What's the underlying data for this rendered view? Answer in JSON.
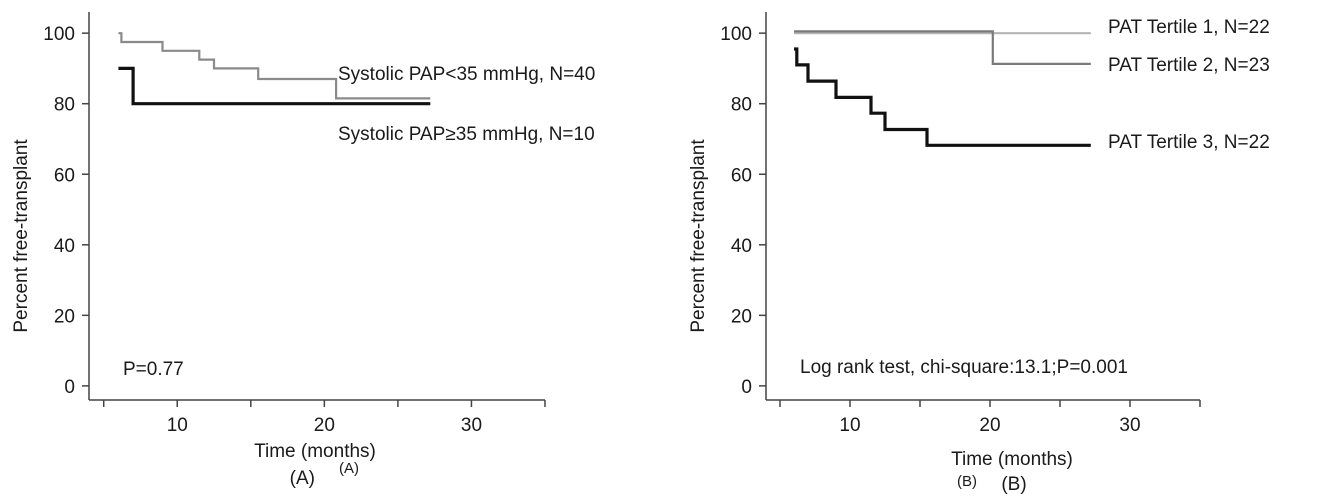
{
  "chart_data": [
    {
      "type": "line",
      "panel_label": "(A)",
      "panel_label_sup": "(A)",
      "xlabel": "Time (months)",
      "ylabel": "Percent  free-transplant",
      "xlim": [
        4,
        35
      ],
      "ylim": [
        -4,
        106
      ],
      "xticks": [
        10,
        20,
        30
      ],
      "yticks": [
        0,
        20,
        40,
        60,
        80,
        100
      ],
      "grid": false,
      "annotation": "P=0.77",
      "series": [
        {
          "name": "Systolic PAP<35 mmHg, N=40",
          "color": "#8a8a8a",
          "x": [
            6,
            6.2,
            6.2,
            9,
            9,
            11.5,
            11.5,
            12.5,
            12.5,
            15.5,
            15.5,
            20.8,
            20.8,
            27.2
          ],
          "y": [
            100,
            100,
            97.5,
            97.5,
            95,
            95,
            92.5,
            92.5,
            90,
            90,
            87,
            87,
            81.5,
            81.5
          ]
        },
        {
          "name": "Systolic PAP≥35 mmHg, N=10",
          "color": "#111111",
          "x": [
            6,
            7,
            7,
            27.2
          ],
          "y": [
            90,
            90,
            80,
            80
          ]
        }
      ]
    },
    {
      "type": "line",
      "panel_label": "(B)",
      "panel_label_sub": "(B)",
      "xlabel": "Time (months)",
      "ylabel": "Percent  free-transplant",
      "xlim": [
        4,
        35
      ],
      "ylim": [
        -4,
        106
      ],
      "xticks": [
        10,
        20,
        30
      ],
      "yticks": [
        0,
        20,
        40,
        60,
        80,
        100
      ],
      "grid": false,
      "annotation": "Log rank test, chi-square:13.1;P=0.001",
      "series": [
        {
          "name": "PAT Tertile 1, N=22",
          "color": "#b5b5b5",
          "x": [
            6,
            27.2
          ],
          "y": [
            100,
            100
          ]
        },
        {
          "name": "PAT Tertile 2, N=23",
          "color": "#7a7a7a",
          "x": [
            6,
            20.2,
            20.2,
            27.2
          ],
          "y": [
            100.5,
            100.5,
            91.3,
            91.3
          ]
        },
        {
          "name": "PAT Tertile 3, N=22",
          "color": "#111111",
          "x": [
            6,
            6,
            6.2,
            6.2,
            7,
            7,
            9,
            9,
            11.5,
            11.5,
            12.5,
            12.5,
            15.5,
            15.5,
            27.2
          ],
          "y": [
            95.5,
            95.5,
            95.5,
            91,
            91,
            86.4,
            86.4,
            81.8,
            81.8,
            77.3,
            77.3,
            72.7,
            72.7,
            68.2,
            68.2
          ]
        }
      ]
    }
  ]
}
